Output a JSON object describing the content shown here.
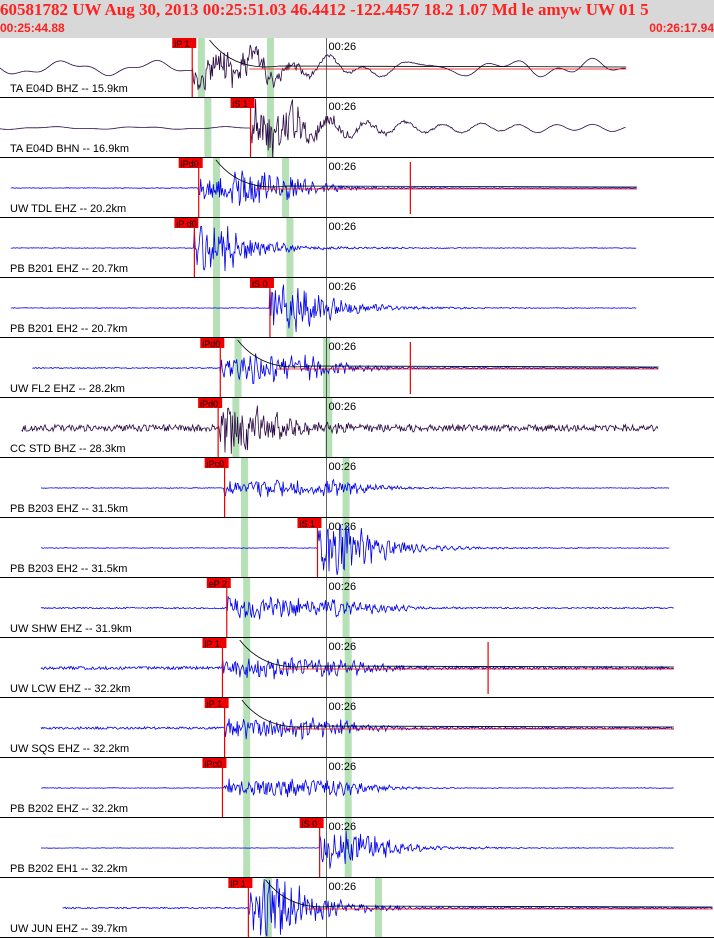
{
  "header": {
    "title": "60581782 UW Aug 30, 2013 00:25:51.03    46.4412 -122.4457 18.2 1.07 Md le amyw UW 01   5",
    "start_time": "00:25:44.88",
    "end_time": "00:26:17.94"
  },
  "colors": {
    "trace_blue": "#0000ee",
    "trace_dark": "#2a0845",
    "pick_red": "#ee0000",
    "theory_green": "#b6e0b6",
    "header_bg": "#d8d8d8"
  },
  "chart_data": {
    "type": "seismogram",
    "time_window": [
      "00:25:44.88",
      "00:26:17.94"
    ],
    "minute_mark": "00:26",
    "traces": [
      {
        "label": "TA E04D BHZ -- 15.9km",
        "dist_km": 15.9,
        "color": "dark",
        "pick": "iP 1",
        "pick_t": 8.9,
        "s_pick": null,
        "green": [
          9.3,
          12.5
        ],
        "noise": 0.55,
        "low_freq": true,
        "event_amp": 0.6,
        "event_t": 11.8,
        "curve": true,
        "red_spike": null,
        "trace_span": [
          0.0,
          29.0
        ]
      },
      {
        "label": "TA E04D BHN -- 16.9km",
        "dist_km": 16.9,
        "color": "dark",
        "pick": "iS 1",
        "pick_t": 11.6,
        "s_pick": null,
        "green": [
          9.6,
          12.5
        ],
        "noise": 0.1,
        "low_freq": true,
        "event_amp": 0.85,
        "event_t": 12.2,
        "curve": false,
        "red_spike": null,
        "trace_span": [
          0.0,
          29.0
        ]
      },
      {
        "label": "UW TDL EHZ -- 20.2km",
        "dist_km": 20.2,
        "color": "blue",
        "pick": "iPd0",
        "pick_t": 9.2,
        "s_pick": null,
        "green": [
          10.0,
          13.2
        ],
        "noise": 0.05,
        "low_freq": false,
        "event_amp": 0.85,
        "event_t": 13.0,
        "curve": true,
        "red_spike": 19.0,
        "trace_span": [
          0.5,
          29.5
        ]
      },
      {
        "label": "PB B201 EHZ -- 20.7km",
        "dist_km": 20.7,
        "color": "blue",
        "pick": "iP d0",
        "pick_t": 9.0,
        "s_pick": null,
        "green": [
          10.0,
          13.4
        ],
        "noise": 0.05,
        "low_freq": false,
        "event_amp": 0.7,
        "event_t": 10.0,
        "curve": false,
        "red_spike": null,
        "trace_span": [
          0.5,
          29.5
        ]
      },
      {
        "label": "PB B201 EH2 -- 20.7km",
        "dist_km": 20.7,
        "color": "blue",
        "pick": "iS 0",
        "pick_t": 12.5,
        "s_pick": null,
        "green": [
          10.0,
          13.4
        ],
        "noise": 0.05,
        "low_freq": false,
        "event_amp": 0.8,
        "event_t": 13.2,
        "curve": false,
        "red_spike": null,
        "trace_span": [
          0.5,
          29.5
        ]
      },
      {
        "label": "UW FL2 EHZ -- 28.2km",
        "dist_km": 28.2,
        "color": "blue",
        "pick": "iPd0",
        "pick_t": 10.2,
        "s_pick": null,
        "green": [
          11.0,
          15.1
        ],
        "noise": 0.08,
        "low_freq": false,
        "event_amp": 0.85,
        "event_t": 14.5,
        "curve": true,
        "red_spike": 19.0,
        "trace_span": [
          1.5,
          30.5
        ]
      },
      {
        "label": "CC STD BHZ -- 28.3km",
        "dist_km": 28.3,
        "color": "dark",
        "pick": "iPd0",
        "pick_t": 10.1,
        "s_pick": null,
        "green": [
          10.9,
          15.2
        ],
        "noise": 0.55,
        "low_freq": false,
        "event_amp": 0.9,
        "event_t": 11.2,
        "curve": false,
        "red_spike": null,
        "trace_span": [
          1.0,
          30.5
        ]
      },
      {
        "label": "PB B203 EHZ -- 31.5km",
        "dist_km": 31.5,
        "color": "blue",
        "pick": "iPc0",
        "pick_t": 10.4,
        "s_pick": null,
        "green": [
          11.3,
          16.0
        ],
        "noise": 0.05,
        "low_freq": false,
        "event_amp": 0.75,
        "event_t": 16.0,
        "curve": false,
        "red_spike": null,
        "trace_span": [
          1.9,
          31.0
        ]
      },
      {
        "label": "PB B203 EH2 -- 31.5km",
        "dist_km": 31.5,
        "color": "blue",
        "pick": "iS 1",
        "pick_t": 14.7,
        "s_pick": null,
        "green": [
          11.3,
          16.0
        ],
        "noise": 0.05,
        "low_freq": false,
        "event_amp": 0.8,
        "event_t": 16.0,
        "curve": false,
        "red_spike": null,
        "trace_span": [
          1.9,
          31.0
        ]
      },
      {
        "label": "UW SHW EHZ -- 31.9km",
        "dist_km": 31.9,
        "color": "blue",
        "pick": "eP 2",
        "pick_t": 10.5,
        "s_pick": null,
        "green": [
          11.4,
          16.0
        ],
        "noise": 0.12,
        "low_freq": false,
        "event_amp": 0.9,
        "event_t": 16.5,
        "curve": false,
        "red_spike": null,
        "trace_span": [
          1.9,
          31.2
        ]
      },
      {
        "label": "UW LCW EHZ -- 32.2km",
        "dist_km": 32.2,
        "color": "blue",
        "pick": "iP 1",
        "pick_t": 10.3,
        "s_pick": null,
        "green": [
          11.4,
          16.1
        ],
        "noise": 0.25,
        "low_freq": false,
        "event_amp": 0.85,
        "event_t": 16.0,
        "curve": true,
        "red_spike": 22.6,
        "trace_span": [
          1.9,
          31.2
        ]
      },
      {
        "label": "UW SQS EHZ -- 32.2km",
        "dist_km": 32.2,
        "color": "blue",
        "pick": "iP 1",
        "pick_t": 10.4,
        "s_pick": null,
        "green": [
          11.4,
          16.1
        ],
        "noise": 0.2,
        "low_freq": false,
        "event_amp": 0.85,
        "event_t": 16.0,
        "curve": true,
        "red_spike": null,
        "trace_span": [
          1.9,
          31.2
        ]
      },
      {
        "label": "PB B202 EHZ -- 32.2km",
        "dist_km": 32.2,
        "color": "blue",
        "pick": "iPc0",
        "pick_t": 10.3,
        "s_pick": null,
        "green": [
          11.4,
          16.1
        ],
        "noise": 0.05,
        "low_freq": false,
        "event_amp": 0.8,
        "event_t": 16.0,
        "curve": false,
        "red_spike": null,
        "trace_span": [
          1.9,
          31.2
        ]
      },
      {
        "label": "PB B202 EH1 -- 32.2km",
        "dist_km": 32.2,
        "color": "blue",
        "pick": "iS 0",
        "pick_t": 14.8,
        "s_pick": null,
        "green": [
          11.4,
          16.1
        ],
        "noise": 0.04,
        "low_freq": false,
        "event_amp": 0.6,
        "event_t": 16.0,
        "curve": false,
        "red_spike": null,
        "trace_span": [
          1.9,
          31.2
        ]
      },
      {
        "label": "UW JUN EHZ -- 39.7km",
        "dist_km": 39.7,
        "color": "blue",
        "pick": "iP 1",
        "pick_t": 11.5,
        "s_pick": null,
        "green": [
          12.4,
          17.5
        ],
        "noise": 0.12,
        "low_freq": false,
        "event_amp": 0.95,
        "event_t": 13.0,
        "curve": true,
        "red_spike": null,
        "trace_span": [
          2.9,
          33.0
        ]
      }
    ]
  }
}
